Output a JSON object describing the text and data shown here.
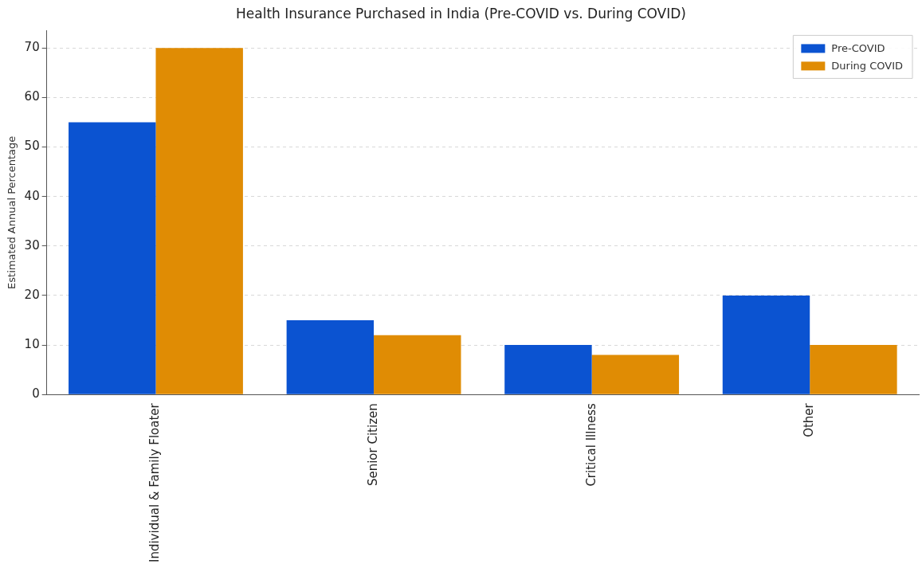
{
  "chart_data": {
    "type": "bar",
    "title": "Health Insurance Purchased in India (Pre-COVID vs. During COVID)",
    "ylabel": "Estimated Annual Percentage",
    "categories": [
      "Individual & Family Floater",
      "Senior Citizen",
      "Critical Illness",
      "Other"
    ],
    "series": [
      {
        "name": "Pre-COVID",
        "color": "#0b53d1",
        "values": [
          55,
          15,
          10,
          20
        ]
      },
      {
        "name": "During COVID",
        "color": "#e08c04",
        "values": [
          70,
          12,
          8,
          10
        ]
      }
    ],
    "ylim": [
      0,
      73.5
    ],
    "yticks": [
      0,
      10,
      20,
      30,
      40,
      50,
      60,
      70
    ],
    "grid": "y",
    "legend": "top right"
  }
}
